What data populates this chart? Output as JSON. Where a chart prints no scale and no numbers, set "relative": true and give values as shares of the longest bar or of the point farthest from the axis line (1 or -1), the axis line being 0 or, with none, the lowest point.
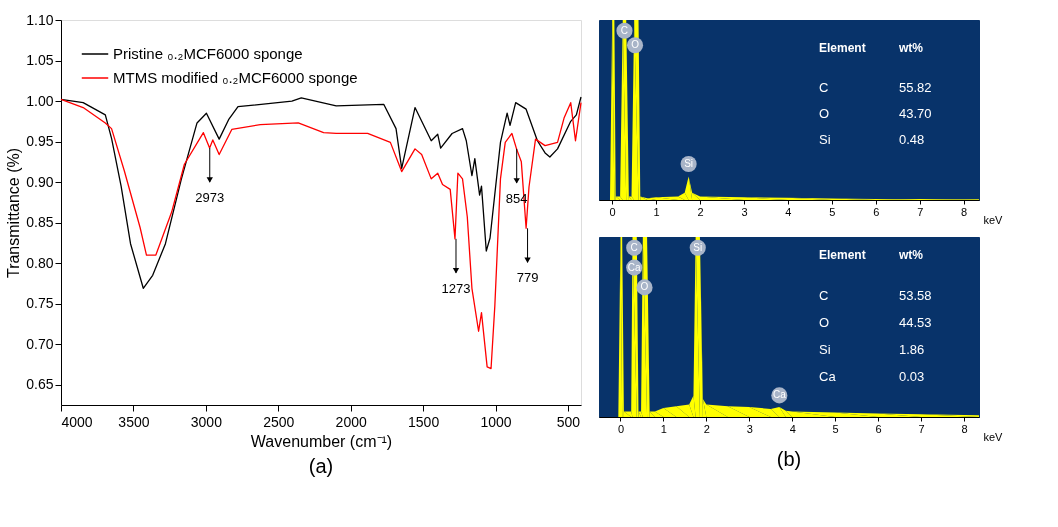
{
  "chart_data": [
    {
      "type": "line",
      "title": "(a)",
      "xlabel": "Wavenumber (cm⁻¹)",
      "ylabel": "Transmittance (%)",
      "xlim": [
        4000,
        410
      ],
      "xticks": [
        4000,
        3500,
        3000,
        2500,
        2000,
        1500,
        1000,
        500
      ],
      "ylim": [
        0.625,
        1.1
      ],
      "yticks": [
        {
          "value": 0.65,
          "label": "0.65"
        },
        {
          "value": 0.7,
          "label": "0.70"
        },
        {
          "value": 0.75,
          "label": "0.75"
        },
        {
          "value": 0.8,
          "label": "0.80"
        },
        {
          "value": 0.85,
          "label": "0.85"
        },
        {
          "value": 0.9,
          "label": "0.90"
        },
        {
          "value": 0.95,
          "label": "0.95"
        },
        {
          "value": 1.0,
          "label": "1.00"
        },
        {
          "value": 1.05,
          "label": "1.05"
        },
        {
          "value": 1.1,
          "label": "1.10"
        }
      ],
      "grid": false,
      "legend": "top left",
      "marker": "none",
      "line_style": "solid",
      "series": [
        {
          "name": "Pristine ₀.₂MCF6000 sponge",
          "color": "#000000",
          "x": [
            4000,
            3847,
            3694,
            3651,
            3585,
            3520,
            3432,
            3367,
            3279,
            3170,
            3061,
            2996,
            2908,
            2843,
            2778,
            2406,
            2341,
            2100,
            1772,
            1687,
            1648,
            1556,
            1444,
            1399,
            1379,
            1300,
            1228,
            1202,
            1163,
            1143,
            1110,
            1097,
            1064,
            1038,
            966,
            920,
            900,
            861,
            789,
            711,
            658,
            625,
            572,
            481,
            442,
            410
          ],
          "values": [
            1.002,
            0.998,
            0.983,
            0.954,
            0.895,
            0.824,
            0.769,
            0.785,
            0.824,
            0.903,
            0.973,
            0.985,
            0.953,
            0.977,
            0.993,
            1.0,
            1.004,
            0.994,
            0.996,
            0.966,
            0.917,
            0.992,
            0.951,
            0.959,
            0.942,
            0.96,
            0.966,
            0.951,
            0.908,
            0.929,
            0.884,
            0.895,
            0.815,
            0.831,
            0.949,
            0.985,
            0.97,
            0.998,
            0.99,
            0.951,
            0.936,
            0.931,
            0.941,
            0.975,
            0.983,
            1.005
          ]
        },
        {
          "name": "MTMS modified ₀.₂MCF6000 sponge",
          "color": "#ff0000",
          "x": [
            4000,
            3847,
            3694,
            3651,
            3563,
            3454,
            3410,
            3345,
            3236,
            3148,
            3017,
            2974,
            2952,
            2908,
            2821,
            2624,
            2362,
            2187,
            2100,
            1883,
            1726,
            1648,
            1556,
            1510,
            1444,
            1399,
            1366,
            1313,
            1280,
            1260,
            1228,
            1195,
            1163,
            1117,
            1097,
            1058,
            1031,
            1005,
            966,
            933,
            887,
            855,
            822,
            789,
            769,
            724,
            658,
            572,
            527,
            481,
            448,
            410
          ],
          "values": [
            1.002,
            0.992,
            0.973,
            0.966,
            0.914,
            0.844,
            0.81,
            0.81,
            0.863,
            0.922,
            0.961,
            0.942,
            0.952,
            0.934,
            0.965,
            0.971,
            0.973,
            0.961,
            0.96,
            0.96,
            0.949,
            0.913,
            0.941,
            0.934,
            0.904,
            0.911,
            0.897,
            0.891,
            0.83,
            0.911,
            0.904,
            0.857,
            0.769,
            0.716,
            0.739,
            0.672,
            0.67,
            0.747,
            0.904,
            0.949,
            0.96,
            0.941,
            0.925,
            0.843,
            0.894,
            0.953,
            0.945,
            0.949,
            0.979,
            0.998,
            0.951,
            0.998
          ]
        }
      ],
      "annotations": [
        {
          "text": "2973",
          "x": 2973,
          "y": 0.942
        },
        {
          "text": "1273",
          "x": 1273,
          "y": 0.83
        },
        {
          "text": "854",
          "x": 854,
          "y": 0.941
        },
        {
          "text": "779",
          "x": 779,
          "y": 0.843
        }
      ]
    },
    {
      "type": "area",
      "relative": true,
      "xlabel": "keV",
      "xlim": [
        -0.3,
        8.35
      ],
      "xticks": [
        0,
        1,
        2,
        3,
        4,
        5,
        6,
        7,
        8
      ],
      "grid": false,
      "series": [
        {
          "color": "#ffff00",
          "x": [
            -0.3,
            -0.05,
            0.0,
            0.05,
            0.08,
            0.18,
            0.24,
            0.32,
            0.38,
            0.44,
            0.5,
            0.6,
            0.64,
            0.8,
            1.0,
            1.5,
            1.65,
            1.74,
            1.82,
            2.0,
            3.0,
            4.0,
            5.0,
            6.0,
            7.0,
            8.35
          ],
          "values": [
            0,
            0,
            1,
            1,
            0.02,
            0.02,
            1,
            1,
            0.02,
            0.02,
            1,
            1,
            0.02,
            0.01,
            0.015,
            0.02,
            0.04,
            0.13,
            0.04,
            0.02,
            0.015,
            0.012,
            0.008,
            0.006,
            0.005,
            0.004
          ]
        }
      ],
      "annotations": [
        {
          "text": "C",
          "x": 0.28,
          "y": 0.94
        },
        {
          "text": "O",
          "x": 0.52,
          "y": 0.86
        },
        {
          "text": "Si",
          "x": 1.74,
          "y": 0.2
        },
        "Element",
        "wt%",
        "C",
        "55.82",
        "O",
        "43.70",
        "Si",
        "0.48"
      ]
    },
    {
      "type": "area",
      "relative": true,
      "title": "(b)",
      "xlabel": "keV",
      "xlim": [
        -0.5,
        8.35
      ],
      "xticks": [
        0,
        1,
        2,
        3,
        4,
        5,
        6,
        7,
        8
      ],
      "grid": false,
      "series": [
        {
          "color": "#ffff00",
          "x": [
            -0.5,
            -0.05,
            0.0,
            0.04,
            0.08,
            0.25,
            0.28,
            0.38,
            0.42,
            0.48,
            0.52,
            0.62,
            0.68,
            0.8,
            1.0,
            1.3,
            1.6,
            1.7,
            1.75,
            1.85,
            1.92,
            2.0,
            2.5,
            3.0,
            3.5,
            3.7,
            3.85,
            4.0,
            5.0,
            6.0,
            7.0,
            8.35
          ],
          "values": [
            0,
            0,
            1,
            1,
            0.03,
            0.03,
            1,
            1,
            0.03,
            0.03,
            1,
            1,
            0.03,
            0.03,
            0.05,
            0.06,
            0.07,
            0.12,
            1,
            1,
            0.1,
            0.07,
            0.06,
            0.055,
            0.045,
            0.055,
            0.035,
            0.03,
            0.025,
            0.02,
            0.015,
            0.01
          ]
        }
      ],
      "annotations": [
        {
          "text": "C",
          "x": 0.32,
          "y": 0.94
        },
        {
          "text": "Ca",
          "x": 0.32,
          "y": 0.83
        },
        {
          "text": "O",
          "x": 0.56,
          "y": 0.72
        },
        {
          "text": "Si",
          "x": 1.8,
          "y": 0.94
        },
        {
          "text": "Ca",
          "x": 3.7,
          "y": 0.12
        },
        "Element",
        "wt%",
        "C",
        "53.58",
        "O",
        "44.53",
        "Si",
        "1.86",
        "Ca",
        "0.03"
      ]
    }
  ]
}
